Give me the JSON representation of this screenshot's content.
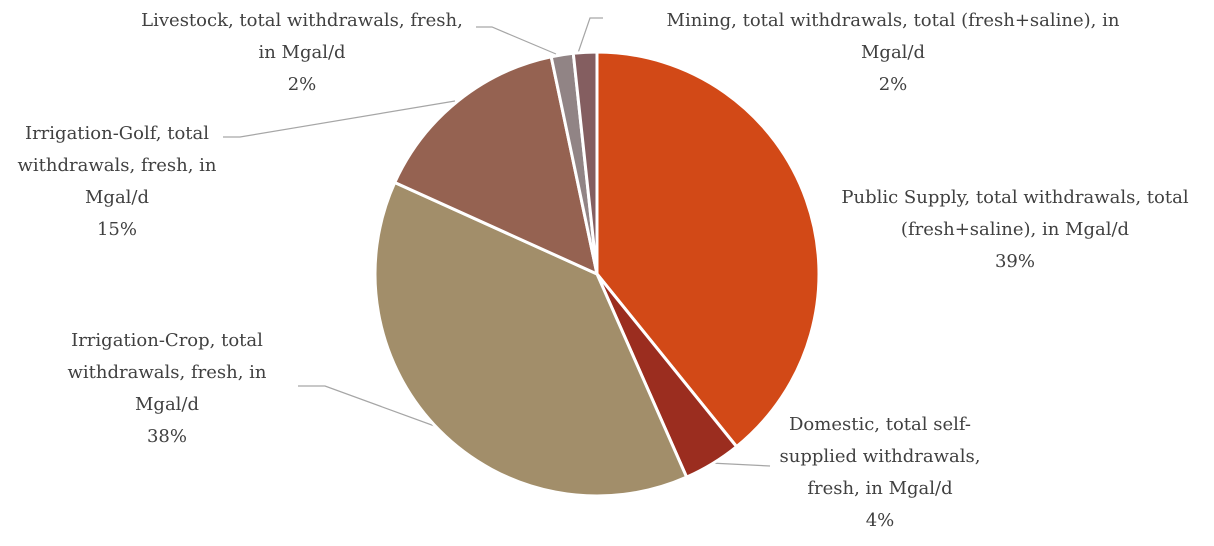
{
  "chart_data": {
    "type": "pie",
    "title": "",
    "start_angle_deg": 0,
    "direction": "clockwise",
    "series": [
      {
        "label_lines": [
          "Public Supply, total withdrawals, total",
          "(fresh+saline), in Mgal/d"
        ],
        "label": "Public Supply, total withdrawals, total (fresh+saline), in Mgal/d",
        "percent_label": "39%",
        "value": 39.1,
        "color": "#D24917"
      },
      {
        "label_lines": [
          "Domestic, total self-",
          "supplied withdrawals,",
          "fresh, in Mgal/d"
        ],
        "label": "Domestic, total self-supplied withdrawals, fresh, in Mgal/d",
        "percent_label": "4%",
        "value": 4.2,
        "color": "#9B2D1F"
      },
      {
        "label_lines": [
          "Irrigation-Crop, total",
          "withdrawals, fresh, in",
          "Mgal/d"
        ],
        "label": "Irrigation-Crop, total withdrawals, fresh, in Mgal/d",
        "percent_label": "38%",
        "value": 38.3,
        "color": "#A28E6A"
      },
      {
        "label_lines": [
          "Irrigation-Golf, total",
          "withdrawals, fresh, in",
          "Mgal/d"
        ],
        "label": "Irrigation-Golf, total withdrawals, fresh, in Mgal/d",
        "percent_label": "15%",
        "value": 14.9,
        "color": "#956251"
      },
      {
        "label_lines": [
          "Livestock, total withdrawals, fresh,",
          "in Mgal/d"
        ],
        "label": "Livestock, total withdrawals, fresh, in Mgal/d",
        "percent_label": "2%",
        "value": 1.6,
        "color": "#918485"
      },
      {
        "label_lines": [
          "Mining, total withdrawals, total (fresh+saline), in",
          "Mgal/d"
        ],
        "label": "Mining, total withdrawals, total (fresh+saline), in Mgal/d",
        "percent_label": "2%",
        "value": 1.7,
        "color": "#845E60"
      }
    ]
  }
}
